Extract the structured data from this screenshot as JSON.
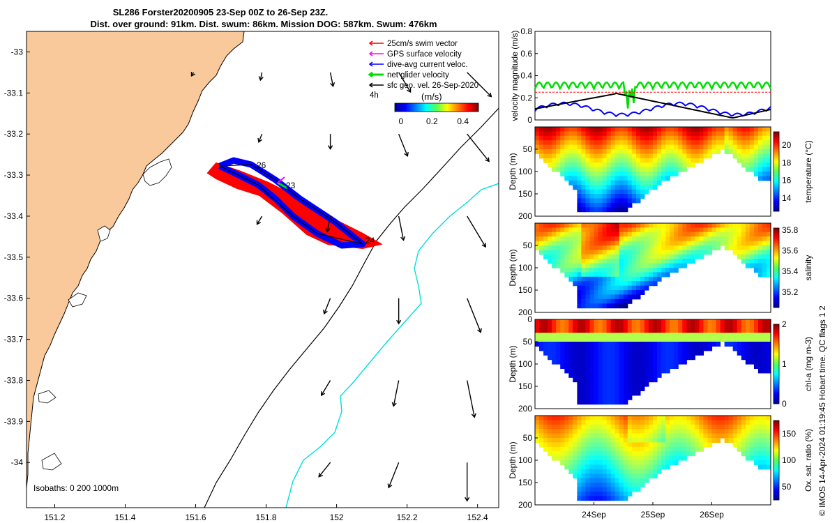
{
  "title_line1": "SL286 Forster20200905 23-Sep 00Z to 26-Sep 23Z.",
  "title_line2": "Dist. over ground: 91km. Dist. swum: 86km. Mission DOG: 587km. Swum: 476km",
  "chart_data": [
    {
      "type": "map",
      "x_ticks": [
        "151.2",
        "151.4",
        "151.6",
        "151.8",
        "152",
        "152.2",
        "152.4"
      ],
      "x_values": [
        151.2,
        151.4,
        151.6,
        151.8,
        152.0,
        152.2,
        152.4
      ],
      "y_ticks": [
        "-33",
        "-33.1",
        "-33.2",
        "-33.3",
        "-33.4",
        "-33.5",
        "-33.6",
        "-33.7",
        "-33.8",
        "-33.9",
        "-34"
      ],
      "y_values": [
        -33,
        -33.1,
        -33.2,
        -33.3,
        -33.4,
        -33.5,
        -33.6,
        -33.7,
        -33.8,
        -33.9,
        -34
      ],
      "xlim": [
        151.12,
        152.46
      ],
      "ylim": [
        -34.11,
        -32.95
      ],
      "legend": [
        {
          "label": "25cm/s swim vector",
          "color": "#ff0000"
        },
        {
          "label": "GPS surface velocity",
          "color": "#ff00ff"
        },
        {
          "label": "dive-avg current veloc.",
          "color": "#0000ff"
        },
        {
          "label": "net glider velocity",
          "color": "#00dd00"
        },
        {
          "label": "sfc geo. vel. 26-Sep-2020",
          "color": "#000000"
        }
      ],
      "legend_note": "4h",
      "colorbar_label": "(m/s)",
      "colorbar_ticks": [
        "0",
        "0.2",
        "0.4"
      ],
      "colorbar_values": [
        0,
        0.2,
        0.4
      ],
      "colorbar_range": [
        -0.04,
        0.5
      ],
      "track_labels": [
        "26",
        "23",
        "24"
      ],
      "isobaths_label": "Isobaths: 0   200  1000m",
      "land_color": "#f9c89b",
      "isobath_200_color": "#000000",
      "isobath_1000_color": "#00dddd"
    },
    {
      "type": "line",
      "ylabel": "velocity magnitude (m/s)",
      "y_ticks": [
        "0",
        "0.2",
        "0.4",
        "0.6",
        "0.8"
      ],
      "ylim": [
        0,
        0.8
      ],
      "series": [
        {
          "color": "#00dd00"
        },
        {
          "color": "#ff0000"
        },
        {
          "color": "#0000ff"
        },
        {
          "color": "#000000"
        }
      ],
      "reference_level": 0.25
    },
    {
      "type": "heatmap",
      "ylabel": "Depth (m)",
      "y_ticks": [
        "50",
        "100",
        "150",
        "200"
      ],
      "colorbar_label": "temperature (°C)",
      "colorbar_ticks": [
        "14",
        "16",
        "18",
        "20"
      ],
      "colorbar_range": [
        12.5,
        21.5
      ]
    },
    {
      "type": "heatmap",
      "ylabel": "Depth (m)",
      "y_ticks": [
        "50",
        "100",
        "150",
        "200"
      ],
      "colorbar_label": "salinity",
      "colorbar_ticks": [
        "35.2",
        "35.4",
        "35.6",
        "35.8"
      ],
      "colorbar_range": [
        35.05,
        35.82
      ]
    },
    {
      "type": "heatmap",
      "ylabel": "Depth (m)",
      "y_ticks": [
        "0",
        "50",
        "100",
        "150",
        "200"
      ],
      "colorbar_label": "chl-a (mg m-3)",
      "colorbar_ticks": [
        "0",
        "1",
        "2"
      ],
      "colorbar_range": [
        0,
        2
      ]
    },
    {
      "type": "heatmap",
      "ylabel": "Depth (m)",
      "y_ticks": [
        "50",
        "100",
        "150",
        "200"
      ],
      "colorbar_label": "Ox. sat. ratio (%)",
      "colorbar_ticks": [
        "50",
        "100",
        "150"
      ],
      "colorbar_range": [
        25,
        175
      ],
      "x_ticks": [
        "24Sep",
        "25Sep",
        "26Sep"
      ]
    }
  ],
  "side_note": "© IMOS 14-Apr-2024 01:19:45 Hobart time. QC flags 1  2"
}
